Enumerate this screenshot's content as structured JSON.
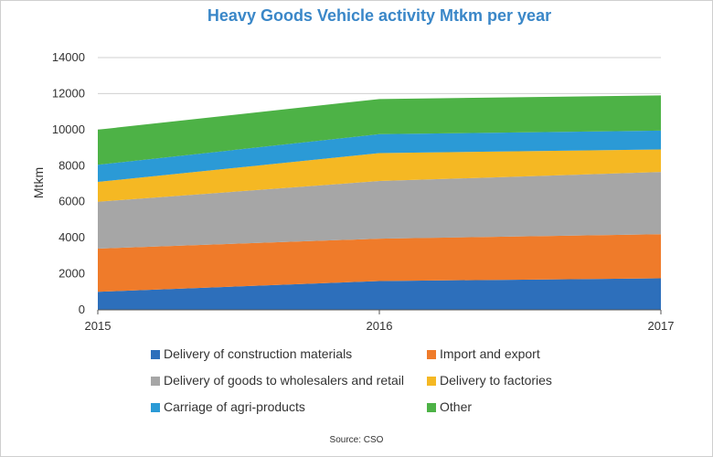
{
  "chart_data": {
    "type": "area",
    "stacked": true,
    "title": "Heavy Goods Vehicle activity Mtkm per year",
    "xlabel": "",
    "ylabel": "Mtkm",
    "x": [
      "2015",
      "2016",
      "2017"
    ],
    "ylim": [
      0,
      14000
    ],
    "yticks": [
      0,
      2000,
      4000,
      6000,
      8000,
      10000,
      12000,
      14000
    ],
    "grid": true,
    "series": [
      {
        "name": "Delivery of construction materials",
        "color": "#2d6fbb",
        "values": [
          1000,
          1600,
          1750
        ]
      },
      {
        "name": "Import and export",
        "color": "#ef7b2a",
        "values": [
          2400,
          2350,
          2450
        ]
      },
      {
        "name": "Delivery of goods to wholesalers and retail",
        "color": "#a6a6a6",
        "values": [
          2600,
          3200,
          3450
        ]
      },
      {
        "name": "Delivery to factories",
        "color": "#f5b823",
        "values": [
          1100,
          1550,
          1250
        ]
      },
      {
        "name": "Carriage of agri-products",
        "color": "#2b9ad6",
        "values": [
          950,
          1050,
          1050
        ]
      },
      {
        "name": "Other",
        "color": "#4db246",
        "values": [
          1950,
          1950,
          1950
        ]
      }
    ],
    "legend_position": "bottom",
    "source": "Source: CSO"
  }
}
